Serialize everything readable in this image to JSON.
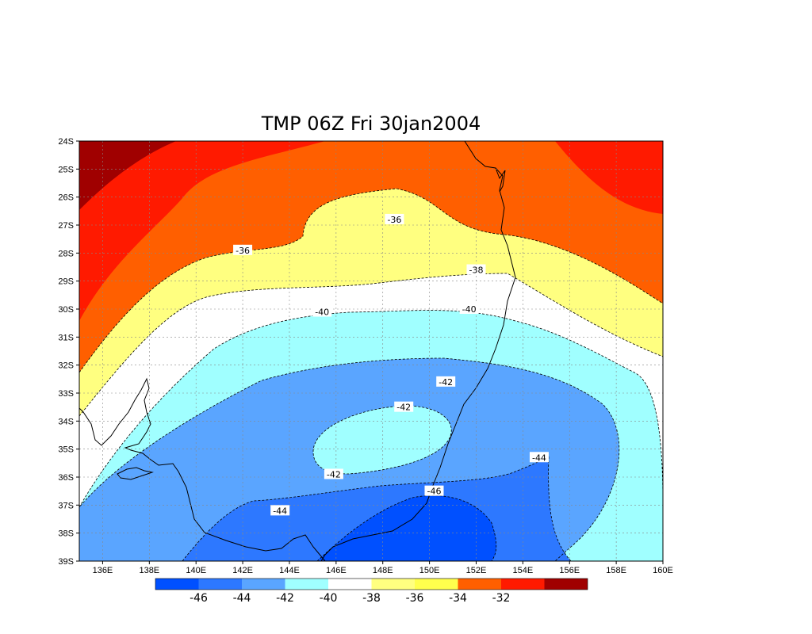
{
  "title": "TMP 06Z Fri 30jan2004",
  "chart_data": {
    "type": "heatmap",
    "variable": "TMP",
    "valid_time": "06Z Fri 30jan2004",
    "lat_ticks": [
      "24S",
      "25S",
      "26S",
      "27S",
      "28S",
      "29S",
      "30S",
      "31S",
      "32S",
      "33S",
      "34S",
      "35S",
      "36S",
      "37S",
      "38S",
      "39S"
    ],
    "lon_ticks": [
      "136E",
      "138E",
      "140E",
      "142E",
      "144E",
      "146E",
      "148E",
      "150E",
      "152E",
      "154E",
      "156E",
      "158E",
      "160E"
    ],
    "lon_range": [
      135,
      160
    ],
    "lat_range": [
      -39,
      -24
    ],
    "grid": true,
    "colorbar": {
      "labels": [
        "-46",
        "-44",
        "-42",
        "-40",
        "-38",
        "-36",
        "-34",
        "-32"
      ],
      "colors": [
        "#0050ff",
        "#2d78ff",
        "#5aa5ff",
        "#a0ffff",
        "#ffffff",
        "#ffff80",
        "#ffff4d",
        "#ff5f00",
        "#ff1a00",
        "#a00000"
      ]
    },
    "contour_labels": [
      {
        "text": "-36",
        "lon": 148.5,
        "lat": -26.8
      },
      {
        "text": "-36",
        "lon": 142.0,
        "lat": -27.9
      },
      {
        "text": "-38",
        "lon": 152.0,
        "lat": -28.6
      },
      {
        "text": "-40",
        "lon": 145.4,
        "lat": -30.1
      },
      {
        "text": "-40",
        "lon": 151.7,
        "lat": -30.0
      },
      {
        "text": "-42",
        "lon": 150.7,
        "lat": -32.6
      },
      {
        "text": "-42",
        "lon": 148.9,
        "lat": -33.5
      },
      {
        "text": "-42",
        "lon": 145.9,
        "lat": -35.9
      },
      {
        "text": "-44",
        "lon": 154.7,
        "lat": -35.3
      },
      {
        "text": "-44",
        "lon": 143.6,
        "lat": -37.2
      },
      {
        "text": "-46",
        "lon": 150.2,
        "lat": -36.5
      }
    ]
  }
}
